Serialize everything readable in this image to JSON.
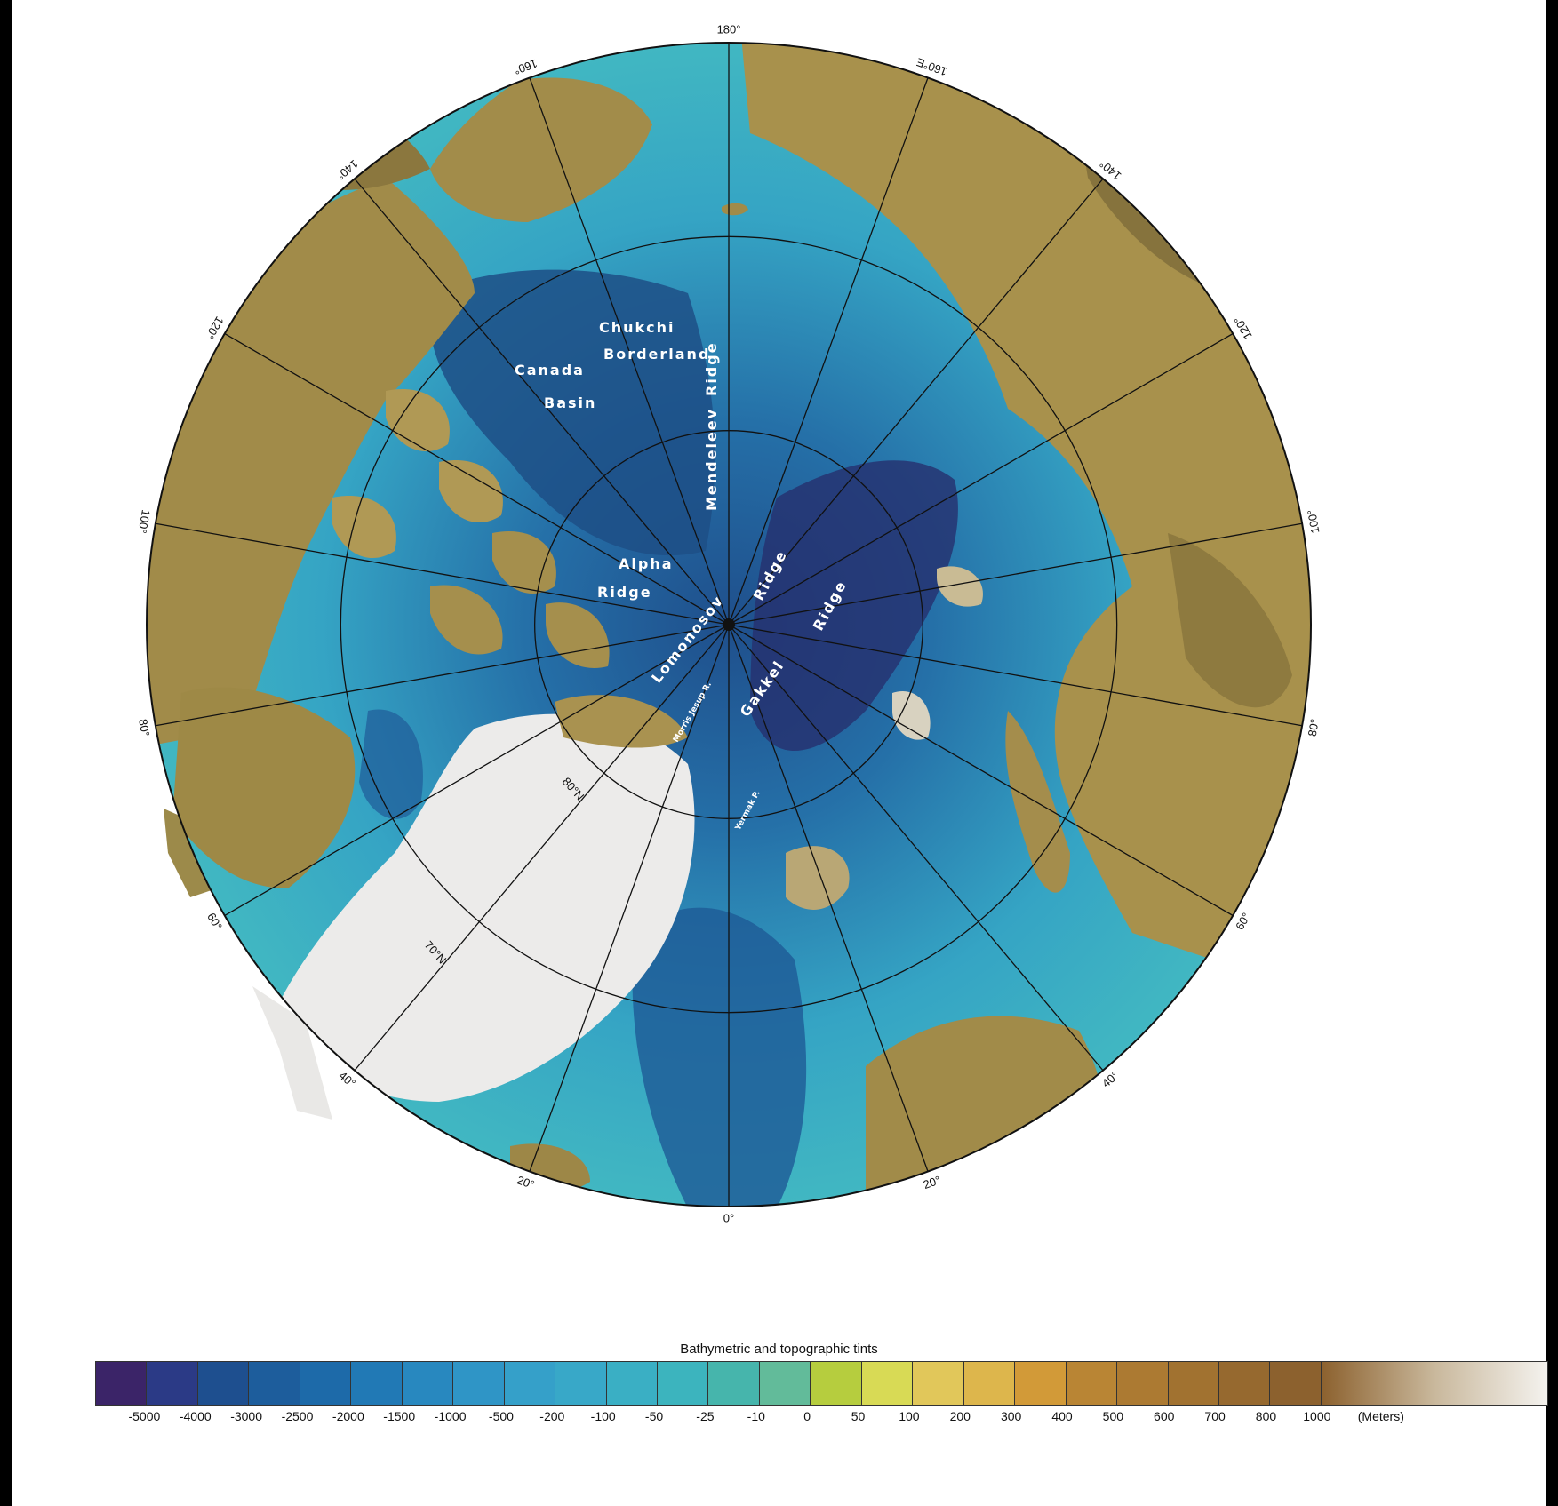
{
  "map": {
    "longitude_labels": [
      {
        "text": "180°",
        "lon": 180
      },
      {
        "text": "160°",
        "lon": -160
      },
      {
        "text": "160°E",
        "lon": 160
      },
      {
        "text": "140°",
        "lon": -140
      },
      {
        "text": "140°",
        "lon": 140
      },
      {
        "text": "120°",
        "lon": -120
      },
      {
        "text": "120°",
        "lon": 120
      },
      {
        "text": "100°",
        "lon": -100
      },
      {
        "text": "100°",
        "lon": 100
      },
      {
        "text": "80°",
        "lon": -80
      },
      {
        "text": "80°",
        "lon": 80
      },
      {
        "text": "60°",
        "lon": -60
      },
      {
        "text": "60°",
        "lon": 60
      },
      {
        "text": "40°",
        "lon": -40
      },
      {
        "text": "40°",
        "lon": 40
      },
      {
        "text": "20°",
        "lon": -20
      },
      {
        "text": "20°",
        "lon": 20
      },
      {
        "text": "0°",
        "lon": 0
      }
    ],
    "latitude_labels": [
      {
        "text": "80°N",
        "lat": 80
      },
      {
        "text": "70°N",
        "lat": 70
      }
    ],
    "latitude_circles": [
      80,
      70,
      60
    ],
    "meridian_step_degrees": 20,
    "features": [
      {
        "id": "chukchi",
        "text": "Chukchi"
      },
      {
        "id": "borderland",
        "text": "Borderland"
      },
      {
        "id": "canada",
        "text": "Canada"
      },
      {
        "id": "basin",
        "text": "Basin"
      },
      {
        "id": "mendeleev",
        "text": "Mendeleev"
      },
      {
        "id": "mendeleev-ridge",
        "text": "Ridge"
      },
      {
        "id": "alpha",
        "text": "Alpha"
      },
      {
        "id": "alpha-ridge",
        "text": "Ridge"
      },
      {
        "id": "lomonosov",
        "text": "Lomonosov"
      },
      {
        "id": "lomonosov-ridge",
        "text": "Ridge"
      },
      {
        "id": "gakkel",
        "text": "Gakkel"
      },
      {
        "id": "gakkel-ridge",
        "text": "Ridge"
      },
      {
        "id": "morris",
        "text": "Morris Jesup R."
      },
      {
        "id": "yermak",
        "text": "Yermak P."
      }
    ]
  },
  "legend": {
    "title": "Bathymetric and topographic tints",
    "colors": [
      "#3b2468",
      "#2b3a86",
      "#1e4f8f",
      "#1d5d9c",
      "#1d6aa9",
      "#2179b5",
      "#2888bf",
      "#2f95c6",
      "#35a0c9",
      "#38a8c8",
      "#3aafc4",
      "#3cb4be",
      "#46b5ac",
      "#62bb9a",
      "#b6cd3e",
      "#d8da55",
      "#e1c75a",
      "#ddb64c",
      "#d29a38",
      "#b98534",
      "#ac7a32",
      "#a17230",
      "#96692f",
      "#8c612e"
    ],
    "gradient_end": [
      "#8c612e",
      "#c9b89c",
      "#f4f2ee"
    ],
    "tick_labels": [
      "-5000",
      "-4000",
      "-3000",
      "-2500",
      "-2000",
      "-1500",
      "-1000",
      "-500",
      "-200",
      "-100",
      "-50",
      "-25",
      "-10",
      "0",
      "50",
      "100",
      "200",
      "300",
      "400",
      "500",
      "600",
      "700",
      "800",
      "1000",
      "(Meters)"
    ]
  }
}
